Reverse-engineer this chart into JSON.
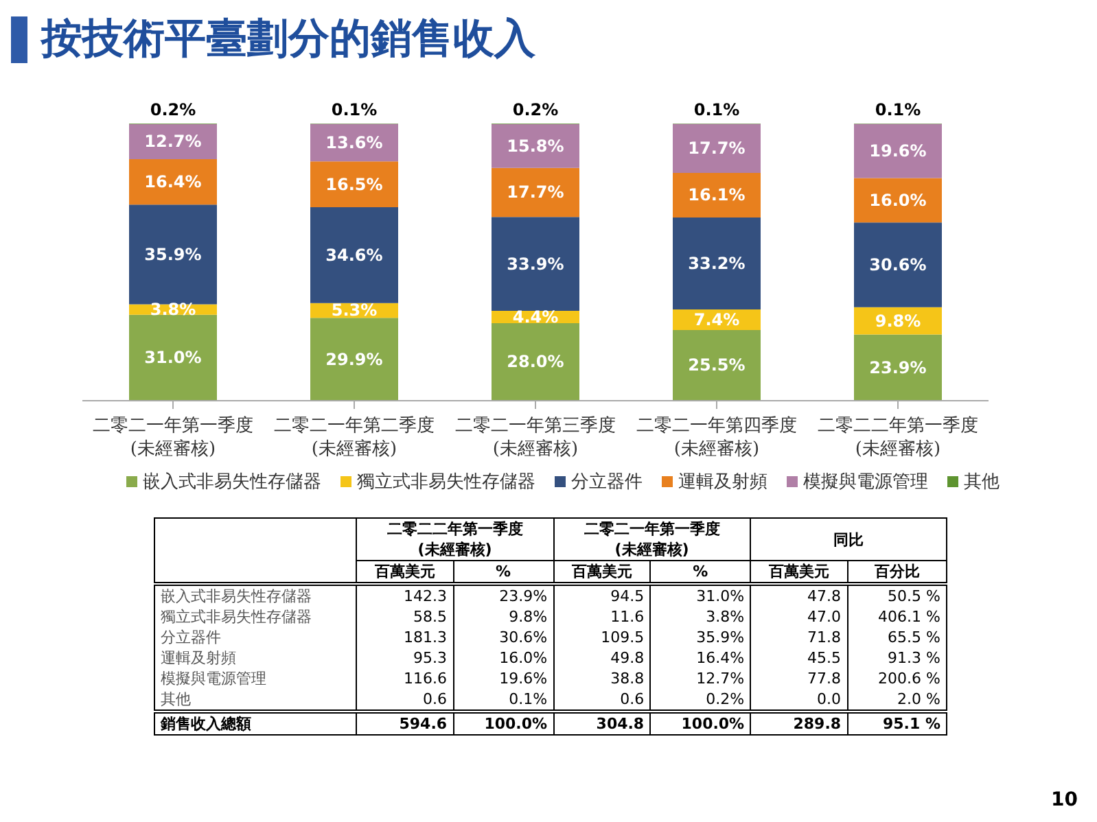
{
  "chart_data": [
    {
      "type": "bar",
      "title": "按技術平臺劃分的銷售收入",
      "stacked": true,
      "legend": "bottom",
      "categories": [
        "二零二一年第一季度\n(未經審核)",
        "二零二一年第二季度\n(未經審核)",
        "二零二一年第三季度\n(未經審核)",
        "二零二一年第四季度\n(未經審核)",
        "二零二二年第一季度\n(未經審核)"
      ],
      "series": [
        {
          "name": "嵌入式非易失性存儲器",
          "color": "#8aab4c",
          "values": [
            31.0,
            29.9,
            28.0,
            25.5,
            23.9
          ],
          "value_labels": [
            "31.0%",
            "29.9%",
            "28.0%",
            "25.5%",
            "23.9%"
          ]
        },
        {
          "name": "獨立式非易失性存儲器",
          "color": "#f5c518",
          "values": [
            3.8,
            5.3,
            4.4,
            7.4,
            9.8
          ],
          "value_labels": [
            "3.8%",
            "5.3%",
            "4.4%",
            "7.4%",
            "9.8%"
          ]
        },
        {
          "name": "分立器件",
          "color": "#34507f",
          "values": [
            35.9,
            34.6,
            33.9,
            33.2,
            30.6
          ],
          "value_labels": [
            "35.9%",
            "34.6%",
            "33.9%",
            "33.2%",
            "30.6%"
          ]
        },
        {
          "name": "運輯及射頻",
          "color": "#e8801e",
          "values": [
            16.4,
            16.5,
            17.7,
            16.1,
            16.0
          ],
          "value_labels": [
            "16.4%",
            "16.5%",
            "17.7%",
            "16.1%",
            "16.0%"
          ]
        },
        {
          "name": "模擬與電源管理",
          "color": "#b07fa6",
          "values": [
            12.7,
            13.6,
            15.8,
            17.7,
            19.6
          ],
          "value_labels": [
            "12.7%",
            "13.6%",
            "15.8%",
            "17.7%",
            "19.6%"
          ]
        },
        {
          "name": "其他",
          "color": "#5e9430",
          "values": [
            0.2,
            0.1,
            0.2,
            0.1,
            0.1
          ],
          "value_labels": [
            "0.2%",
            "0.1%",
            "0.2%",
            "0.1%",
            "0.1%"
          ]
        }
      ],
      "annotations": [
        "10"
      ]
    },
    {
      "type": "other",
      "annotations": [
        "二零二二年第一季度\n(未經審核)",
        "二零二一年第一季度\n(未經審核)",
        "同比"
      ],
      "categories": [
        "百萬美元",
        "%",
        "百萬美元",
        "%",
        "百萬美元",
        "百分比"
      ],
      "y_categories": [
        "嵌入式非易失性存儲器",
        "獨立式非易失性存儲器",
        "分立器件",
        "運輯及射頻",
        "模擬與電源管理",
        "其他",
        "銷售收入總額"
      ],
      "cell_labels": [
        [
          "142.3",
          "23.9%",
          "94.5",
          "31.0%",
          "47.8",
          "50.5 %"
        ],
        [
          "58.5",
          "9.8%",
          "11.6",
          "3.8%",
          "47.0",
          "406.1 %"
        ],
        [
          "181.3",
          "30.6%",
          "109.5",
          "35.9%",
          "71.8",
          "65.5 %"
        ],
        [
          "95.3",
          "16.0%",
          "49.8",
          "16.4%",
          "45.5",
          "91.3 %"
        ],
        [
          "116.6",
          "19.6%",
          "38.8",
          "12.7%",
          "77.8",
          "200.6 %"
        ],
        [
          "0.6",
          "0.1%",
          "0.6",
          "0.2%",
          "0.0",
          "2.0 %"
        ],
        [
          "594.6",
          "100.0%",
          "304.8",
          "100.0%",
          "289.8",
          "95.1 %"
        ]
      ]
    }
  ]
}
